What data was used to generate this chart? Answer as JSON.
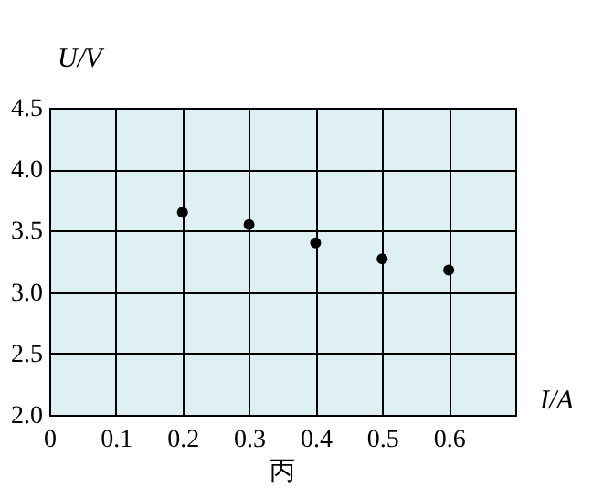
{
  "chart_data": {
    "type": "scatter",
    "xlabel": "I/A",
    "ylabel": "U/V",
    "x": [
      0.2,
      0.3,
      0.4,
      0.5,
      0.6
    ],
    "series": [
      {
        "color": "#000000",
        "values": [
          3.65,
          3.55,
          3.4,
          3.27,
          3.18
        ]
      }
    ],
    "xlim": [
      0,
      0.7
    ],
    "xticks": [
      0,
      0.1,
      0.2,
      0.3,
      0.4,
      0.5,
      0.6
    ],
    "ylim": [
      2.0,
      4.5
    ],
    "yticks": [
      {
        "value": 2.0,
        "label": "2.0"
      },
      {
        "value": 2.5,
        "label": "2.5"
      },
      {
        "value": 3.0,
        "label": "3.0"
      },
      {
        "value": 3.5,
        "label": "3.5"
      },
      {
        "value": 4.0,
        "label": "4.0"
      },
      {
        "value": 4.5,
        "label": "4.5"
      }
    ],
    "grid": true,
    "marker": "circle",
    "annotations": [
      "丙"
    ]
  }
}
